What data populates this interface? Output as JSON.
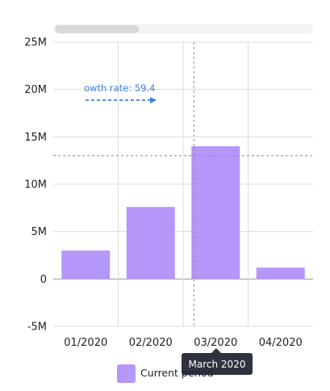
{
  "chart_data": {
    "type": "bar",
    "categories": [
      "01/2020",
      "02/2020",
      "03/2020",
      "04/2020"
    ],
    "series": [
      {
        "name": "Current period",
        "values": [
          3000000,
          7600000,
          14000000,
          1200000
        ]
      }
    ],
    "ylim": [
      -5000000,
      25000000
    ],
    "y_ticks": [
      25000000,
      20000000,
      15000000,
      10000000,
      5000000,
      0,
      -5000000
    ],
    "y_tick_labels": [
      "25M",
      "20M",
      "15M",
      "10M",
      "5M",
      "0",
      "-5M"
    ],
    "grid": true,
    "reference_line": {
      "value": 13000000,
      "style": "dotted"
    },
    "annotation": {
      "text": "owth rate: 59.4",
      "arrow": "right",
      "color": "#3d7fd9"
    },
    "crosshair_category": "03/2020",
    "tooltip": {
      "text": "March 2020"
    },
    "legend": {
      "placement": "bottom",
      "entries": [
        "Current period"
      ]
    },
    "colors": {
      "bar": "#b597fa",
      "grid": "#dcdcdc",
      "tooltip_bg": "#2f3340",
      "scrollbar_thumb": "#d8d8d8",
      "scrollbar_track": "#f4f4f4"
    }
  }
}
